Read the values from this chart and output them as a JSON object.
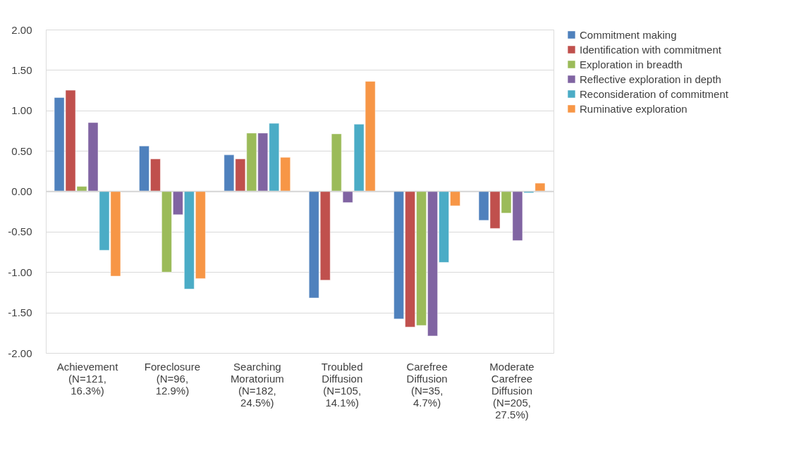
{
  "chart_data": {
    "type": "bar",
    "categories": [
      "Achievement (N=121, 16.3%)",
      "Foreclosure (N=96, 12.9%)",
      "Searching Moratorium (N=182, 24.5%)",
      "Troubled Diffusion (N=105, 14.1%)",
      "Carefree Diffusion (N=35, 4.7%)",
      "Moderate Carefree Diffusion (N=205, 27.5%)"
    ],
    "series": [
      {
        "name": "Commitment making",
        "color": "#4f81bd",
        "values": [
          1.16,
          0.56,
          0.45,
          -1.32,
          -1.58,
          -0.36
        ]
      },
      {
        "name": "Identification with commitment",
        "color": "#c0504d",
        "values": [
          1.25,
          0.4,
          0.4,
          -1.1,
          -1.68,
          -0.46
        ]
      },
      {
        "name": "Exploration in breadth",
        "color": "#9bbb59",
        "values": [
          0.06,
          -1.0,
          0.72,
          0.71,
          -1.66,
          -0.27
        ]
      },
      {
        "name": "Reflective exploration in depth",
        "color": "#8064a2",
        "values": [
          0.85,
          -0.29,
          0.72,
          -0.14,
          -1.79,
          -0.61
        ]
      },
      {
        "name": "Reconsideration of commitment",
        "color": "#4bacc6",
        "values": [
          -0.73,
          -1.21,
          0.84,
          0.83,
          -0.88,
          -0.02
        ]
      },
      {
        "name": "Ruminative exploration",
        "color": "#f79646",
        "values": [
          -1.05,
          -1.08,
          0.42,
          1.36,
          -0.18,
          0.1
        ]
      }
    ],
    "ylim": [
      -2,
      2
    ],
    "yticks": [
      {
        "value": -2,
        "label": "-2.00"
      },
      {
        "value": -1.5,
        "label": "-1.50"
      },
      {
        "value": -1,
        "label": "-1.00"
      },
      {
        "value": -0.5,
        "label": "-0.50"
      },
      {
        "value": 0,
        "label": "0.00"
      },
      {
        "value": 0.5,
        "label": "0.50"
      },
      {
        "value": 1,
        "label": "1.00"
      },
      {
        "value": 1.5,
        "label": "1.50"
      },
      {
        "value": 2,
        "label": "2.00"
      }
    ],
    "grid": "y",
    "legend": "right"
  }
}
